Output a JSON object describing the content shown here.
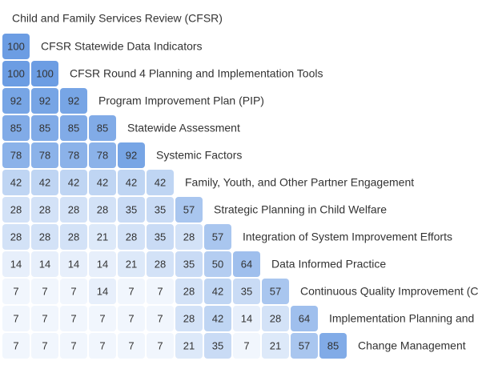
{
  "chart_data": {
    "type": "heatmap",
    "title": "Child and Family Services Review (CFSR)",
    "color_low": "#f1f6fd",
    "color_high": "#6c9de3",
    "rows": [
      {
        "label": "CFSR Statewide Data Indicators",
        "values": [
          100
        ]
      },
      {
        "label": "CFSR Round 4 Planning and Implementation Tools",
        "values": [
          100,
          100
        ]
      },
      {
        "label": "Program Improvement Plan (PIP)",
        "values": [
          92,
          92,
          92
        ]
      },
      {
        "label": "Statewide Assessment",
        "values": [
          85,
          85,
          85,
          85
        ]
      },
      {
        "label": "Systemic Factors",
        "values": [
          78,
          78,
          78,
          78,
          92
        ]
      },
      {
        "label": "Family, Youth, and Other Partner Engagement",
        "values": [
          42,
          42,
          42,
          42,
          42,
          42
        ]
      },
      {
        "label": "Strategic Planning in Child Welfare",
        "values": [
          28,
          28,
          28,
          28,
          35,
          35,
          57
        ]
      },
      {
        "label": "Integration of System Improvement Efforts",
        "values": [
          28,
          28,
          28,
          21,
          28,
          35,
          28,
          57
        ]
      },
      {
        "label": "Data Informed Practice",
        "values": [
          14,
          14,
          14,
          14,
          21,
          28,
          35,
          50,
          64
        ]
      },
      {
        "label": "Continuous Quality Improvement (C",
        "values": [
          7,
          7,
          7,
          14,
          7,
          7,
          28,
          42,
          35,
          57
        ]
      },
      {
        "label": "Implementation Planning and C",
        "values": [
          7,
          7,
          7,
          7,
          7,
          7,
          28,
          42,
          14,
          28,
          64
        ]
      },
      {
        "label": "Change Management",
        "values": [
          7,
          7,
          7,
          7,
          7,
          7,
          21,
          35,
          7,
          21,
          57,
          85
        ]
      }
    ]
  }
}
